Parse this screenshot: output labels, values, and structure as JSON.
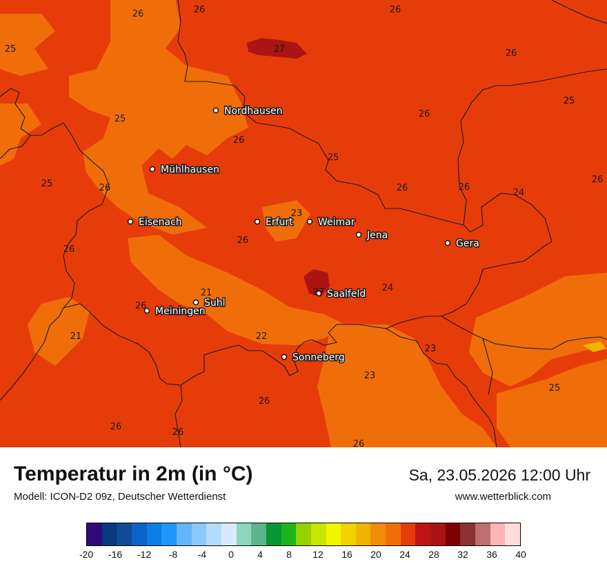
{
  "map": {
    "cities": [
      {
        "name": "Nordhausen"
      },
      {
        "name": "Mühlhausen"
      },
      {
        "name": "Eisenach"
      },
      {
        "name": "Erfurt"
      },
      {
        "name": "Weimar"
      },
      {
        "name": "Jena"
      },
      {
        "name": "Gera"
      },
      {
        "name": "Suhl"
      },
      {
        "name": "Meiningen"
      },
      {
        "name": "Saalfeld"
      },
      {
        "name": "Sonneberg"
      }
    ],
    "values": [
      "26",
      "26",
      "26",
      "25",
      "27",
      "26",
      "26",
      "25",
      "26",
      "25",
      "25",
      "25",
      "26",
      "26",
      "24",
      "26",
      "23",
      "26",
      "26",
      "26",
      "24",
      "21",
      "26",
      "21",
      "22",
      "23",
      "23",
      "25",
      "26",
      "26",
      "26",
      "26",
      "27"
    ]
  },
  "footer": {
    "title": "Temperatur in 2m (in °C)",
    "model": "Modell: ICON-D2 09z, Deutscher Wetterdienst",
    "date": "Sa, 23.05.2026 12:00 Uhr",
    "site": "www.wetterblick.com"
  },
  "legend": {
    "ticks": [
      "-20",
      "-16",
      "-12",
      "-8",
      "-4",
      "0",
      "4",
      "8",
      "12",
      "16",
      "20",
      "24",
      "28",
      "32",
      "36",
      "40"
    ],
    "colors": [
      "#2e0a7a",
      "#06397e",
      "#0f4c96",
      "#0a64c8",
      "#0a7de6",
      "#1e96fa",
      "#64b4fa",
      "#8cc8fa",
      "#b4dcfa",
      "#d7ebfa",
      "#8cd7be",
      "#5ab48c",
      "#0a9632",
      "#1eb41e",
      "#96d200",
      "#c8e600",
      "#f0f500",
      "#f0d200",
      "#f0b400",
      "#f08c0a",
      "#f06e0a",
      "#e63c0a",
      "#be1414",
      "#aa1414",
      "#7d0000",
      "#8c3232",
      "#be6e6e",
      "#ffb4b4",
      "#ffdcdc"
    ],
    "colors_note": ""
  }
}
